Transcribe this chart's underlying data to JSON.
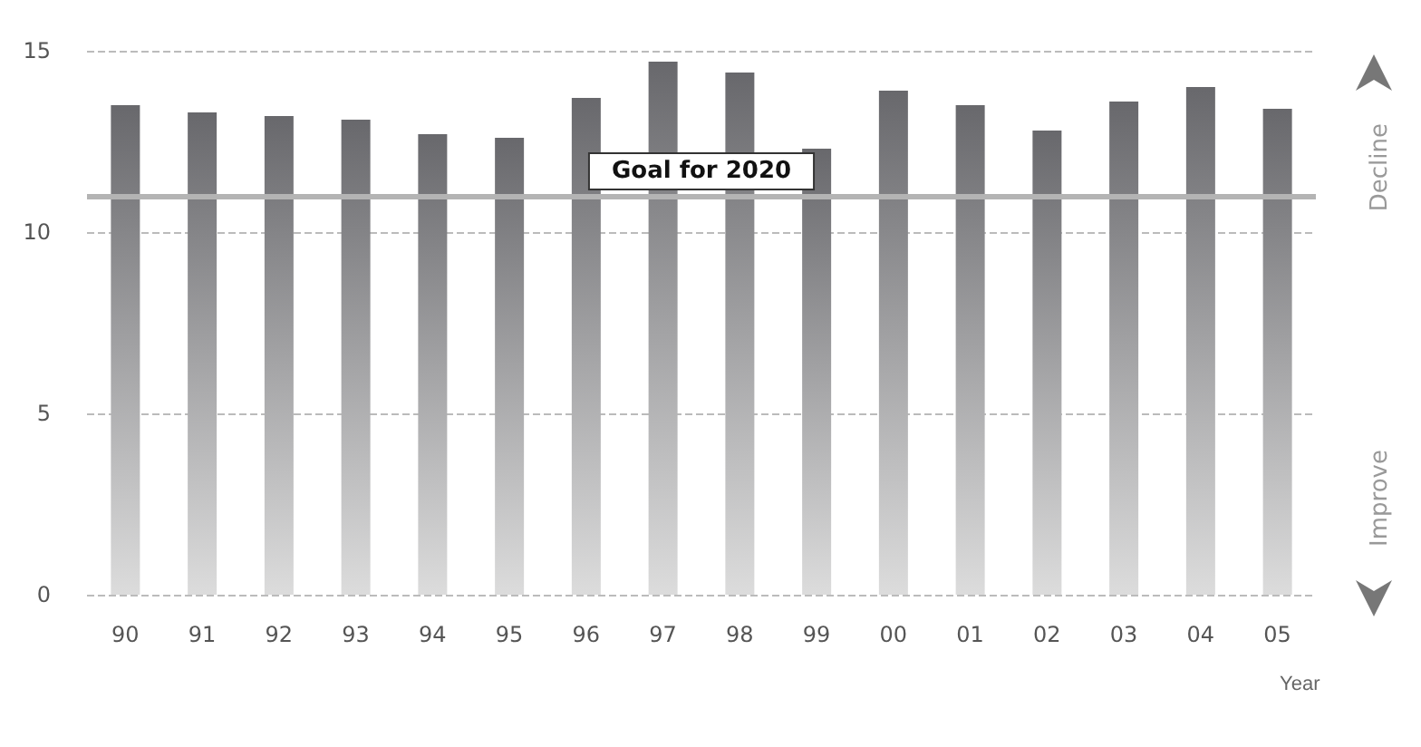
{
  "chart_data": {
    "type": "bar",
    "xlabel": "Year",
    "categories": [
      "90",
      "91",
      "92",
      "93",
      "94",
      "95",
      "96",
      "97",
      "98",
      "99",
      "00",
      "01",
      "02",
      "03",
      "04",
      "05"
    ],
    "values": [
      13.5,
      13.3,
      13.2,
      13.1,
      12.7,
      12.6,
      13.7,
      14.7,
      14.4,
      12.3,
      13.9,
      13.5,
      12.8,
      13.6,
      14.0,
      13.4
    ],
    "color": "#68686c",
    "ylim": [
      0,
      15
    ],
    "yticks": [
      0,
      5,
      10,
      15
    ],
    "grid": "y",
    "ref_lines": [
      {
        "axis": "y",
        "value": 11,
        "label": "Goal for 2020",
        "color": "#b4b4b4"
      }
    ],
    "annotations": [
      "Decline",
      "Improve"
    ]
  }
}
